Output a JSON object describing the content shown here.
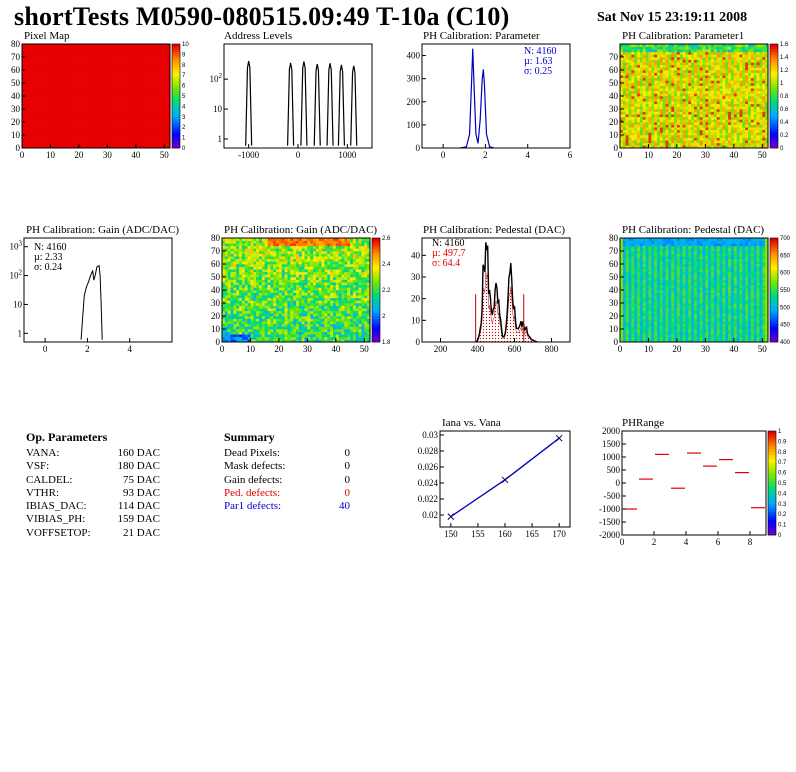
{
  "header": {
    "title": "shortTests M0590-080515.09:49 T-10a (C10)",
    "date": "Sat Nov 15 23:19:11 2008"
  },
  "colors": {
    "red": "#e30000",
    "blue": "#0000d0",
    "hist_line": "#000000",
    "fit_line": "#0000c0",
    "pedfit": "#c00000"
  },
  "chart_data": [
    {
      "id": "pixel-map",
      "type": "heatmap",
      "title": "Pixel Map",
      "xlim": [
        0,
        52
      ],
      "ylim": [
        0,
        80
      ],
      "xticks": [
        "0",
        "10",
        "20",
        "30",
        "40",
        "50"
      ],
      "yticks": [
        "0",
        "10",
        "20",
        "30",
        "40",
        "50",
        "60",
        "70",
        "80"
      ],
      "zticks": [
        "0",
        "1",
        "2",
        "3",
        "4",
        "5",
        "6",
        "7",
        "8",
        "9",
        "10"
      ],
      "uniform_value": 10
    },
    {
      "id": "address-levels",
      "type": "line",
      "title": "Address Levels",
      "xlim": [
        -1500,
        1500
      ],
      "log_y": true,
      "xticks": [
        "-1000",
        "0",
        "1000"
      ],
      "yticks": [
        "1",
        "10",
        "10^2"
      ],
      "peaks": [
        -1000,
        -150,
        120,
        390,
        650,
        880,
        1130
      ]
    },
    {
      "id": "ph-param",
      "type": "line",
      "title": "PH Calibration: Parameter",
      "xlim": [
        -1,
        6
      ],
      "ylim": [
        0,
        450
      ],
      "xticks": [
        "0",
        "2",
        "4",
        "6"
      ],
      "yticks": [
        "0",
        "100",
        "200",
        "300",
        "400"
      ],
      "peaks": [
        {
          "x": 1.4,
          "y": 430
        },
        {
          "x": 1.9,
          "y": 340
        }
      ],
      "stats": {
        "n": "N: 4160",
        "mu": "µ: 1.63",
        "sigma": "σ: 0.25"
      }
    },
    {
      "id": "ph-param1",
      "type": "heatmap",
      "title": "PH Calibration: Parameter1",
      "xlim": [
        0,
        52
      ],
      "ylim": [
        0,
        80
      ],
      "xticks": [
        "0",
        "10",
        "20",
        "30",
        "40",
        "50"
      ],
      "yticks": [
        "0",
        "10",
        "20",
        "30",
        "40",
        "50",
        "60",
        "70"
      ],
      "zticks": [
        "0",
        "0.2",
        "0.4",
        "0.6",
        "0.8",
        "1",
        "1.2",
        "1.4",
        "1.6"
      ]
    },
    {
      "id": "gain-hist",
      "type": "line",
      "title": "PH Calibration: Gain (ADC/DAC)",
      "xlim": [
        -1,
        6
      ],
      "log_y": true,
      "xticks": [
        "0",
        "2",
        "4"
      ],
      "yticks": [
        "1",
        "10",
        "10^2",
        "10^3"
      ],
      "stats": {
        "n": "N: 4160",
        "mu": "µ: 2.33",
        "sigma": "σ: 0.24"
      }
    },
    {
      "id": "gain-map",
      "type": "heatmap",
      "title": "PH Calibration: Gain (ADC/DAC)",
      "xlim": [
        0,
        52
      ],
      "ylim": [
        0,
        80
      ],
      "xticks": [
        "0",
        "10",
        "20",
        "30",
        "40",
        "50"
      ],
      "yticks": [
        "0",
        "10",
        "20",
        "30",
        "40",
        "50",
        "60",
        "70",
        "80"
      ],
      "zticks": [
        "1.8",
        "2",
        "2.2",
        "2.4",
        "2.6"
      ]
    },
    {
      "id": "pedestal-hist",
      "type": "line",
      "title": "PH Calibration: Pedestal (DAC)",
      "xlim": [
        100,
        900
      ],
      "ylim": [
        0,
        48
      ],
      "xticks": [
        "200",
        "400",
        "600",
        "800"
      ],
      "yticks": [
        "0",
        "10",
        "20",
        "30",
        "40"
      ],
      "cut_lines": [
        390,
        650
      ],
      "stats": {
        "n": "N: 4160",
        "mu": "µ: 497.7",
        "sigma": "σ: 64.4"
      }
    },
    {
      "id": "pedestal-map",
      "type": "heatmap",
      "title": "PH Calibration: Pedestal (DAC)",
      "xlim": [
        0,
        52
      ],
      "ylim": [
        0,
        80
      ],
      "xticks": [
        "0",
        "10",
        "20",
        "30",
        "40",
        "50"
      ],
      "yticks": [
        "0",
        "10",
        "20",
        "30",
        "40",
        "50",
        "60",
        "70",
        "80"
      ],
      "zticks": [
        "400",
        "450",
        "500",
        "550",
        "600",
        "650",
        "700"
      ]
    },
    {
      "id": "iana-vana",
      "type": "scatter",
      "title": "Iana vs. Vana",
      "xlim": [
        148,
        172
      ],
      "ylim": [
        0.0185,
        0.0305
      ],
      "xticks": [
        "150",
        "155",
        "160",
        "165",
        "170"
      ],
      "yticks": [
        "0.02",
        "0.022",
        "0.024",
        "0.026",
        "0.028",
        "0.03"
      ],
      "x": [
        150,
        160,
        170
      ],
      "y": [
        0.0198,
        0.0244,
        0.0296
      ]
    },
    {
      "id": "phrange",
      "type": "scatter",
      "title": "PHRange",
      "xlim": [
        0,
        9
      ],
      "ylim": [
        -2000,
        2000
      ],
      "xticks": [
        "0",
        "2",
        "4",
        "6",
        "8"
      ],
      "yticks": [
        "-2000",
        "-1500",
        "-1000",
        "-500",
        "0",
        "500",
        "1000",
        "1500",
        "2000"
      ],
      "zticks": [
        "0",
        "0.1",
        "0.2",
        "0.3",
        "0.4",
        "0.5",
        "0.6",
        "0.7",
        "0.8",
        "0.9",
        "1"
      ],
      "x": [
        0,
        1,
        2,
        3,
        4,
        5,
        6,
        7,
        8
      ],
      "y": [
        -1000,
        150,
        1100,
        -200,
        1150,
        650,
        900,
        400,
        -950
      ]
    }
  ],
  "op_params": {
    "title": "Op. Parameters",
    "rows": [
      {
        "name": "VANA:",
        "value": "160 DAC"
      },
      {
        "name": "VSF:",
        "value": "180 DAC"
      },
      {
        "name": "CALDEL:",
        "value": "75 DAC"
      },
      {
        "name": "VTHR:",
        "value": "93 DAC"
      },
      {
        "name": "IBIAS_DAC:",
        "value": "114 DAC"
      },
      {
        "name": "VIBIAS_PH:",
        "value": "159 DAC"
      },
      {
        "name": "VOFFSETOP:",
        "value": "21 DAC"
      }
    ]
  },
  "summary": {
    "title": "Summary",
    "rows": [
      {
        "name": "Dead Pixels:",
        "value": "0",
        "color": "#000000"
      },
      {
        "name": "Mask defects:",
        "value": "0",
        "color": "#000000"
      },
      {
        "name": "Gain defects:",
        "value": "0",
        "color": "#000000"
      },
      {
        "name": "Ped. defects:",
        "value": "0",
        "color": "#e30000"
      },
      {
        "name": "Par1 defects:",
        "value": "40",
        "color": "#0000d0"
      }
    ]
  }
}
